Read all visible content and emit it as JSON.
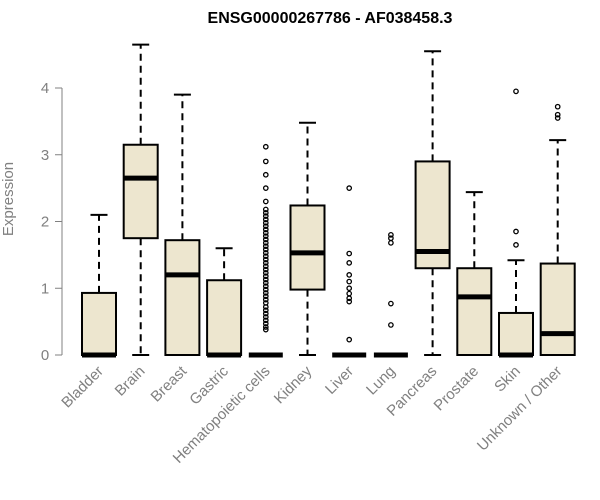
{
  "chart_data": {
    "type": "boxplot",
    "title": "ENSG00000267786 - AF038458.3",
    "ylabel": "Expression",
    "xlabel": "",
    "ylim": [
      0,
      4.8
    ],
    "yticks": [
      0,
      1,
      2,
      3,
      4
    ],
    "categories": [
      "Bladder",
      "Brain",
      "Breast",
      "Gastric",
      "Hematopoietic cells",
      "Kidney",
      "Liver",
      "Lung",
      "Pancreas",
      "Prostate",
      "Skin",
      "Unknown / Other"
    ],
    "box_fill": "#ede6cf",
    "box_stroke": "#000000",
    "series": [
      {
        "category": "Bladder",
        "whisker_low": 0,
        "q1": 0,
        "median": 0,
        "q3": 0.93,
        "whisker_high": 2.1,
        "outliers": []
      },
      {
        "category": "Brain",
        "whisker_low": 0,
        "q1": 1.75,
        "median": 2.65,
        "q3": 3.15,
        "whisker_high": 4.65,
        "outliers": []
      },
      {
        "category": "Breast",
        "whisker_low": 0,
        "q1": 0,
        "median": 1.2,
        "q3": 1.72,
        "whisker_high": 3.9,
        "outliers": []
      },
      {
        "category": "Gastric",
        "whisker_low": 0,
        "q1": 0,
        "median": 0,
        "q3": 1.12,
        "whisker_high": 1.6,
        "outliers": []
      },
      {
        "category": "Hematopoietic cells",
        "whisker_low": 0,
        "q1": 0,
        "median": 0,
        "q3": 0,
        "whisker_high": 0,
        "outliers": [
          0.38,
          0.42,
          0.47,
          0.52,
          0.57,
          0.62,
          0.67,
          0.72,
          0.78,
          0.83,
          0.88,
          0.93,
          0.98,
          1.03,
          1.08,
          1.13,
          1.18,
          1.23,
          1.28,
          1.33,
          1.38,
          1.43,
          1.48,
          1.53,
          1.58,
          1.63,
          1.68,
          1.73,
          1.78,
          1.83,
          1.88,
          1.93,
          1.98,
          2.03,
          2.08,
          2.13,
          2.18,
          2.3,
          2.5,
          2.7,
          2.9,
          3.12
        ]
      },
      {
        "category": "Kidney",
        "whisker_low": 0,
        "q1": 0.98,
        "median": 1.53,
        "q3": 2.24,
        "whisker_high": 3.48,
        "outliers": []
      },
      {
        "category": "Liver",
        "whisker_low": 0,
        "q1": 0,
        "median": 0,
        "q3": 0,
        "whisker_high": 0,
        "outliers": [
          0.23,
          0.8,
          0.85,
          0.92,
          1.0,
          1.1,
          1.2,
          1.38,
          1.52,
          2.5
        ]
      },
      {
        "category": "Lung",
        "whisker_low": 0,
        "q1": 0,
        "median": 0,
        "q3": 0,
        "whisker_high": 0,
        "outliers": [
          0.45,
          0.77,
          1.68,
          1.75,
          1.8
        ]
      },
      {
        "category": "Pancreas",
        "whisker_low": 0,
        "q1": 1.3,
        "median": 1.55,
        "q3": 2.9,
        "whisker_high": 4.55,
        "outliers": []
      },
      {
        "category": "Prostate",
        "whisker_low": 0,
        "q1": 0,
        "median": 0.87,
        "q3": 1.3,
        "whisker_high": 2.44,
        "outliers": []
      },
      {
        "category": "Skin",
        "whisker_low": 0,
        "q1": 0,
        "median": 0,
        "q3": 0.63,
        "whisker_high": 1.42,
        "outliers": [
          1.65,
          1.85,
          3.95
        ]
      },
      {
        "category": "Unknown / Other",
        "whisker_low": 0,
        "q1": 0,
        "median": 0.32,
        "q3": 1.37,
        "whisker_high": 3.22,
        "outliers": [
          3.55,
          3.6,
          3.72
        ]
      }
    ]
  }
}
